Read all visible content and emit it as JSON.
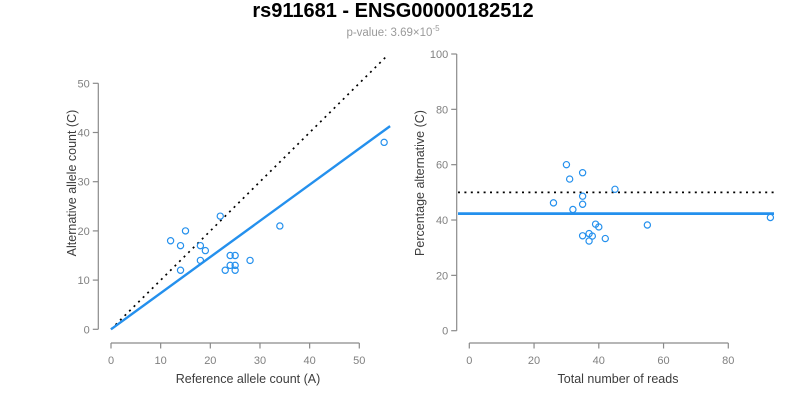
{
  "header": {
    "title": "rs911681 - ENSG00000182512",
    "subtitle_prefix": "p-value: 3.69×10",
    "subtitle_exponent": "-5"
  },
  "colors": {
    "accent_blue": "#2490ed",
    "dotted_black": "#000000",
    "axis_line": "#8a8a8a",
    "tick_label": "#808080",
    "axis_title": "#3d3d3d",
    "title_black": "#000000",
    "subtitle_gray": "#9a9a9a"
  },
  "chart_data": [
    {
      "id": "allele-count-scatter",
      "type": "scatter",
      "xlabel": "Reference allele count (A)",
      "ylabel": "Alternative allele count (C)",
      "xlim": [
        0,
        56
      ],
      "ylim": [
        0,
        56
      ],
      "xticks": [
        0,
        10,
        20,
        30,
        40,
        50
      ],
      "yticks": [
        0,
        10,
        20,
        30,
        40,
        50
      ],
      "grid": false,
      "legend": null,
      "points": [
        [
          12,
          18
        ],
        [
          14,
          17
        ],
        [
          15,
          20
        ],
        [
          14,
          12
        ],
        [
          18,
          17
        ],
        [
          19,
          16
        ],
        [
          18,
          14
        ],
        [
          22,
          23
        ],
        [
          23,
          12
        ],
        [
          24,
          15
        ],
        [
          25,
          15
        ],
        [
          24,
          13
        ],
        [
          25,
          13
        ],
        [
          25,
          12
        ],
        [
          28,
          14
        ],
        [
          34,
          21
        ],
        [
          55,
          38
        ]
      ],
      "lines": [
        {
          "name": "identity-line",
          "style": "dotted",
          "color": "#000000",
          "x1": 0,
          "y1": 0,
          "x2": 55.4,
          "y2": 55.4
        },
        {
          "name": "regression-line",
          "style": "solid",
          "color": "#2490ed",
          "x1": 0,
          "y1": 0,
          "x2": 56.2,
          "y2": 41.3
        }
      ]
    },
    {
      "id": "percentage-alternative-scatter",
      "type": "scatter",
      "xlabel": "Total number of reads",
      "ylabel": "Percentage alternative (C)",
      "xlim": [
        0,
        94.5
      ],
      "ylim": [
        0,
        100
      ],
      "xticks": [
        0,
        20,
        40,
        60,
        80
      ],
      "yticks": [
        0,
        20,
        40,
        60,
        80,
        100
      ],
      "grid": false,
      "legend": null,
      "points": [
        [
          30,
          60
        ],
        [
          31,
          54.8
        ],
        [
          35,
          57.1
        ],
        [
          26,
          46.2
        ],
        [
          35,
          48.6
        ],
        [
          35,
          45.7
        ],
        [
          32,
          43.8
        ],
        [
          45,
          51.1
        ],
        [
          35,
          34.3
        ],
        [
          39,
          38.5
        ],
        [
          40,
          37.5
        ],
        [
          37,
          35.1
        ],
        [
          38,
          34.2
        ],
        [
          37,
          32.4
        ],
        [
          42,
          33.3
        ],
        [
          55,
          38.2
        ],
        [
          93,
          40.9
        ]
      ],
      "lines": [
        {
          "name": "expected-50pct-line",
          "style": "dotted",
          "color": "#000000",
          "y": 50
        },
        {
          "name": "mean-percentage-line",
          "style": "solid",
          "color": "#2490ed",
          "y": 42.3
        }
      ]
    }
  ]
}
